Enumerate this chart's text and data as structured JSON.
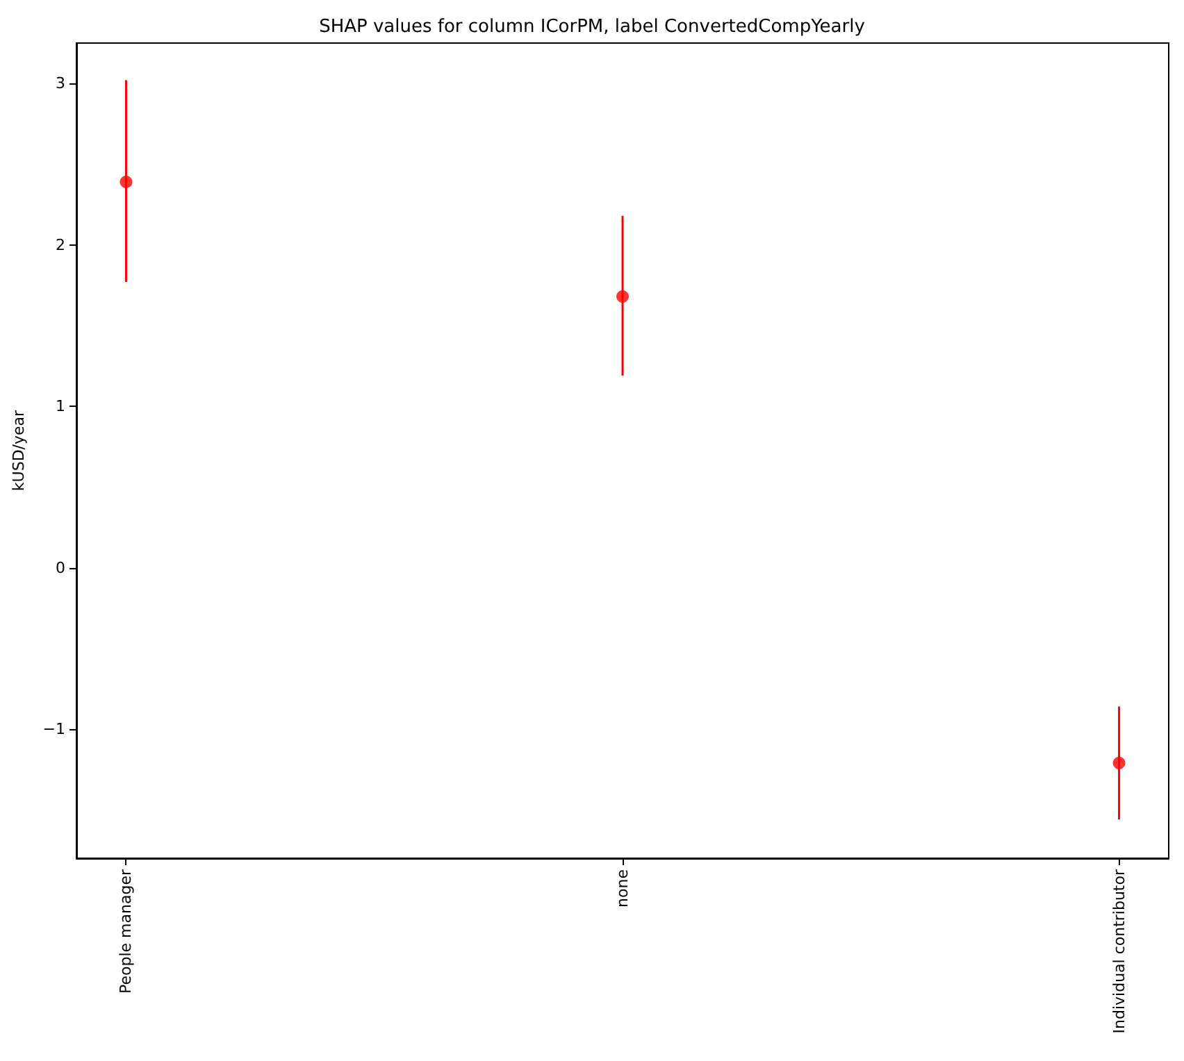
{
  "chart_data": {
    "type": "scatter",
    "title": "SHAP values for column ICorPM, label ConvertedCompYearly",
    "ylabel": "kUSD/year",
    "categories": [
      "People manager",
      "none",
      "Individual contributor"
    ],
    "series": [
      {
        "color": "#ff0000",
        "values": [
          2.39,
          1.68,
          -1.21
        ],
        "errors": [
          [
            1.77,
            3.02
          ],
          [
            1.19,
            2.18
          ],
          [
            -1.56,
            -0.86
          ]
        ]
      }
    ],
    "ylim": [
      -1.8,
      3.25
    ],
    "yticks": [
      -1,
      0,
      1,
      2,
      3
    ],
    "marker": "circle"
  }
}
